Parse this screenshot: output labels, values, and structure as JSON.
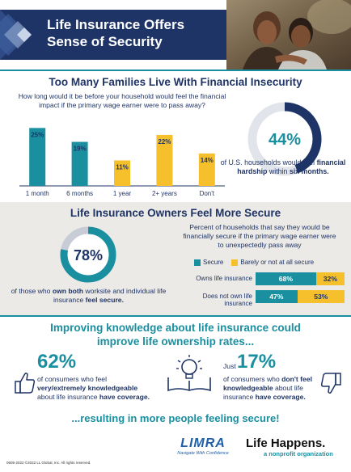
{
  "header": {
    "title_line1": "Life Insurance Offers",
    "title_line2": "Sense of Security"
  },
  "section1": {
    "title": "Too Many Families Live With Financial Insecurity",
    "question": "How long would it be before your household would feel the financial impact if the primary wage earner were to pass away?",
    "donut": {
      "value_label": "44%",
      "value": 44,
      "caption_pre": "of U.S. households would feel ",
      "caption_bold": "financial hardship",
      "caption_mid": " within ",
      "caption_bold2": "six months."
    }
  },
  "chart_data": {
    "type": "bar",
    "categories": [
      "1 month",
      "6 months",
      "1 year",
      "2+ years",
      "Don't"
    ],
    "values": [
      25,
      19,
      11,
      22,
      14
    ],
    "value_labels": [
      "25%",
      "19%",
      "11%",
      "22%",
      "14%"
    ],
    "colors": [
      "#1a8fa0",
      "#1a8fa0",
      "#f5c02b",
      "#f5c02b",
      "#f5c02b"
    ],
    "title": "",
    "xlabel": "",
    "ylabel": "",
    "ylim": [
      0,
      30
    ]
  },
  "section2": {
    "title": "Life Insurance Owners Feel More Secure",
    "donut": {
      "value_label": "78%",
      "value": 78,
      "caption_pre": "of those who ",
      "caption_bold": "own both",
      "caption_mid": " worksite and individual life insurance ",
      "caption_bold2": "feel secure."
    },
    "desc": "Percent of households that say they would be financially secure if the primary wage earner were to unexpectedly pass away",
    "legend": {
      "secure": "Secure",
      "not_secure": "Barely or not at all secure"
    },
    "rows": [
      {
        "label": "Owns life insurance",
        "secure": 68,
        "secure_label": "68%",
        "not": 32,
        "not_label": "32%"
      },
      {
        "label": "Does not own life insurance",
        "secure": 47,
        "secure_label": "47%",
        "not": 53,
        "not_label": "53%"
      }
    ]
  },
  "section3": {
    "title_line1": "Improving knowledge about life insurance could",
    "title_line2": "improve life ownership rates...",
    "left": {
      "big": "62%",
      "t1": "of consumers who feel",
      "t2": "very/extremely knowledgeable",
      "t3": "about life insurance ",
      "t4": "have coverage."
    },
    "right": {
      "just": "Just",
      "big": "17%",
      "t1": "of consumers who ",
      "t2": "don't feel knowledgeable",
      "t3": " about life insurance ",
      "t4": "have coverage."
    },
    "footer": "...resulting in more people feeling secure!"
  },
  "footer": {
    "note": "0605-2022     ©2022 LL Global, Inc. All rights reserved.",
    "limra": "LIMRA",
    "limra_tag": "Navigate With Confidence",
    "lh": "Life Happens.",
    "lh_tag": "a nonprofit organization"
  },
  "colors": {
    "navy": "#1f3466",
    "teal": "#1a8fa0",
    "yellow": "#f5c02b",
    "gray_bg": "#eceae6"
  }
}
